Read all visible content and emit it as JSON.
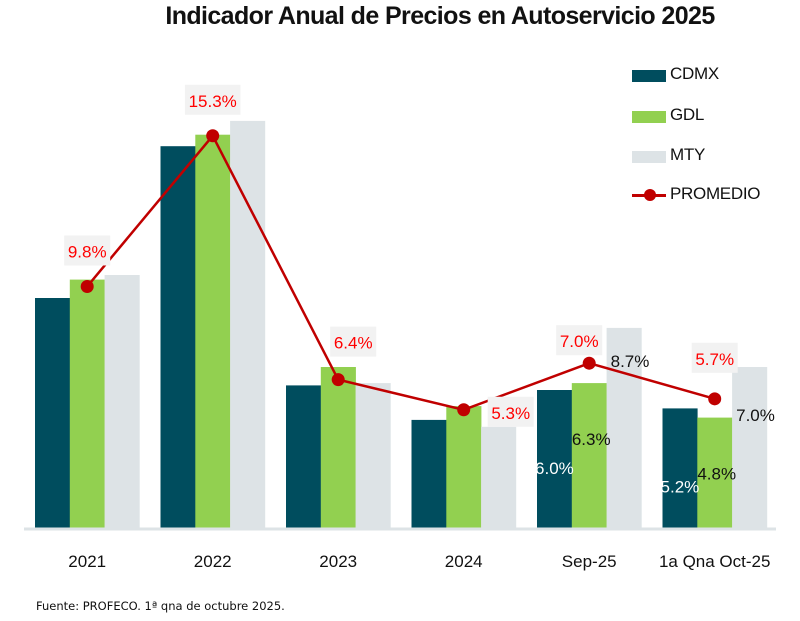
{
  "chart_data": {
    "type": "bar",
    "title": "Indicador Anual de Precios en Autoservicio 2025",
    "xlabel": "",
    "ylabel": "",
    "categories": [
      "2021",
      "2022",
      "2023",
      "2024",
      "Sep-25",
      "1a Qna Oct-25"
    ],
    "series": [
      {
        "name": "CDMX",
        "type": "bar",
        "color": "#004d5e",
        "values": [
          10.0,
          16.6,
          6.2,
          4.7,
          6.0,
          5.2
        ],
        "labels": [
          null,
          null,
          null,
          null,
          "6.0%",
          "5.2%"
        ]
      },
      {
        "name": "GDL",
        "type": "bar",
        "color": "#92d050",
        "values": [
          10.8,
          17.1,
          7.0,
          5.3,
          6.3,
          4.8
        ],
        "labels": [
          null,
          null,
          null,
          null,
          "6.3%",
          "4.8%"
        ]
      },
      {
        "name": "MTY",
        "type": "bar",
        "color": "#dde3e6",
        "values": [
          11.0,
          17.7,
          6.3,
          4.4,
          8.7,
          7.0
        ],
        "labels": [
          null,
          null,
          null,
          null,
          "8.7%",
          "7.0%"
        ]
      },
      {
        "name": "PROMEDIO",
        "type": "line",
        "color": "#c00000",
        "values": [
          9.8,
          15.3,
          6.4,
          5.3,
          7.0,
          5.7
        ],
        "labels": [
          "9.8%",
          "15.3%",
          "6.4%",
          "5.3%",
          "7.0%",
          "5.7%"
        ]
      }
    ],
    "ylim": [
      0,
      18
    ],
    "grid": false,
    "legend_position": "top-right",
    "label_color_promedio": "#ff0000"
  },
  "legend": {
    "items": [
      {
        "label": "CDMX",
        "color": "#004d5e"
      },
      {
        "label": "GDL",
        "color": "#92d050"
      },
      {
        "label": "MTY",
        "color": "#dde3e6"
      },
      {
        "label": "PROMEDIO",
        "color": "#c00000"
      }
    ]
  },
  "footer": {
    "source": "Fuente: PROFECO. 1ª qna de octubre 2025."
  }
}
